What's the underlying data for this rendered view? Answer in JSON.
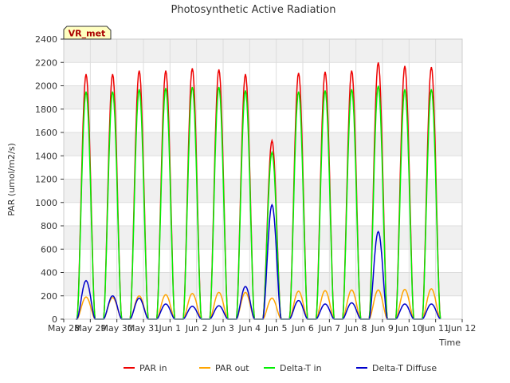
{
  "chart_data": {
    "type": "line",
    "title": "Photosynthetic Active Radiation",
    "xlabel": "Time",
    "ylabel": "PAR (umol/m2/s)",
    "station_label": "VR_met",
    "ylim": [
      0,
      2400
    ],
    "xlim": [
      0,
      15
    ],
    "yticks": [
      0,
      200,
      400,
      600,
      800,
      1000,
      1200,
      1400,
      1600,
      1800,
      2000,
      2200,
      2400
    ],
    "xticks": [
      {
        "value": 0,
        "label": "May 28"
      },
      {
        "value": 1,
        "label": "May 29"
      },
      {
        "value": 2,
        "label": "May 30"
      },
      {
        "value": 3,
        "label": "May 31"
      },
      {
        "value": 4,
        "label": "Jun 1"
      },
      {
        "value": 5,
        "label": "Jun 2"
      },
      {
        "value": 6,
        "label": "Jun 3"
      },
      {
        "value": 7,
        "label": "Jun 4"
      },
      {
        "value": 8,
        "label": "Jun 5"
      },
      {
        "value": 9,
        "label": "Jun 6"
      },
      {
        "value": 10,
        "label": "Jun 7"
      },
      {
        "value": 11,
        "label": "Jun 8"
      },
      {
        "value": 12,
        "label": "Jun 9"
      },
      {
        "value": 13,
        "label": "Jun 10"
      },
      {
        "value": 14,
        "label": "Jun 11"
      },
      {
        "value": 15,
        "label": "Jun 12"
      }
    ],
    "day_start": 0.5,
    "day_width": 0.68,
    "series": [
      {
        "name": "PAR in",
        "color": "#ee0000",
        "daily_peaks": [
          2100,
          2100,
          2130,
          2130,
          2150,
          2140,
          2100,
          1530,
          2110,
          2120,
          2130,
          2200,
          2170,
          2160
        ]
      },
      {
        "name": "PAR out",
        "color": "#ffa500",
        "daily_peaks": [
          190,
          185,
          200,
          210,
          220,
          230,
          230,
          180,
          240,
          245,
          250,
          250,
          255,
          260
        ]
      },
      {
        "name": "Delta-T in",
        "color": "#00ee00",
        "daily_peaks": [
          1950,
          1950,
          1970,
          1980,
          1990,
          1990,
          1960,
          1430,
          1950,
          1960,
          1970,
          2000,
          1970,
          1970
        ]
      },
      {
        "name": "Delta-T Diffuse",
        "color": "#0000cc",
        "daily_peaks": [
          330,
          200,
          180,
          130,
          110,
          115,
          280,
          980,
          160,
          130,
          140,
          750,
          130,
          130
        ]
      }
    ]
  }
}
